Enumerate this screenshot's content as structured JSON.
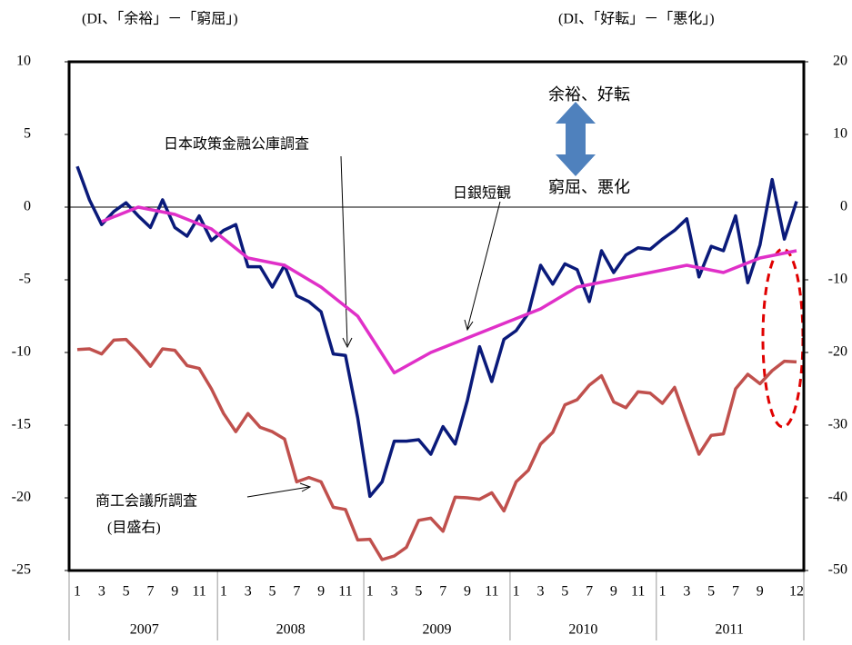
{
  "chart_data": {
    "type": "line",
    "y_axis_label": "(DI、「余裕」－「窮屈」)",
    "y2_axis_label": "(DI、「好転」－「悪化」)",
    "categories": [
      1,
      null,
      3,
      null,
      5,
      null,
      7,
      null,
      9,
      null,
      11,
      null,
      1,
      null,
      3,
      null,
      5,
      null,
      7,
      null,
      9,
      null,
      11,
      null,
      1,
      null,
      3,
      null,
      5,
      null,
      7,
      null,
      9,
      null,
      11,
      null,
      1,
      null,
      3,
      null,
      5,
      null,
      7,
      null,
      9,
      null,
      11,
      null,
      1,
      null,
      3,
      null,
      5,
      null,
      7,
      null,
      9,
      null,
      null,
      12
    ],
    "years": [
      "2007",
      "2008",
      "2009",
      "2010",
      "2011"
    ],
    "ylim": [
      -25,
      10
    ],
    "yticks": [
      10,
      5,
      0,
      -5,
      -10,
      -15,
      -20,
      -25
    ],
    "y2lim": [
      -50,
      20
    ],
    "y2ticks": [
      20,
      10,
      0,
      -10,
      -20,
      -30,
      -40,
      -50
    ],
    "series": [
      {
        "name": "日本政策金融公庫調査",
        "color": "#0a1a7a",
        "values": [
          2.8,
          0.5,
          -1.2,
          -0.3,
          0.3,
          -0.6,
          -1.4,
          0.5,
          -1.4,
          -2.0,
          -0.6,
          -2.3,
          -1.6,
          -1.2,
          -4.1,
          -4.1,
          -5.5,
          -4.0,
          -6.1,
          -6.5,
          -7.2,
          -10.1,
          -10.2,
          -14.5,
          -19.9,
          -18.9,
          -16.1,
          -16.1,
          -16.0,
          -17.0,
          -15.1,
          -16.3,
          -13.3,
          -9.6,
          -12.0,
          -9.1,
          -8.5,
          -7.3,
          -4.0,
          -5.3,
          -3.9,
          -4.3,
          -6.5,
          -3.0,
          -4.5,
          -3.3,
          -2.8,
          -2.9,
          -2.2,
          -1.6,
          -0.8,
          -4.8,
          -2.7,
          -3.0,
          -0.6,
          -5.2,
          -2.6,
          1.9,
          -2.2,
          0.4
        ]
      },
      {
        "name": "日銀短観",
        "color": "#e030c8",
        "values": [
          null,
          null,
          -1.0,
          null,
          null,
          0,
          null,
          null,
          -0.5,
          null,
          null,
          -1.5,
          null,
          null,
          -3.5,
          null,
          null,
          -4.0,
          null,
          null,
          -5.5,
          null,
          null,
          -7.5,
          null,
          null,
          -11.4,
          null,
          null,
          -10.0,
          null,
          null,
          -9.0,
          null,
          null,
          -8.0,
          null,
          null,
          -7.0,
          null,
          null,
          -5.5,
          null,
          null,
          -5.0,
          null,
          null,
          -4.5,
          null,
          null,
          -4.0,
          null,
          null,
          -4.5,
          null,
          null,
          -3.5,
          null,
          null,
          -3.0
        ]
      },
      {
        "name": "商工会議所調査",
        "color": "#c0504d",
        "axis": "y2",
        "values": [
          -19.6,
          -19.5,
          -20.2,
          -18.3,
          -18.2,
          -19.9,
          -21.9,
          -19.5,
          -19.7,
          -21.8,
          -22.2,
          -25.0,
          -28.4,
          -30.9,
          -28.4,
          -30.3,
          -30.9,
          -31.9,
          -37.8,
          -37.2,
          -37.8,
          -41.3,
          -41.6,
          -45.8,
          -45.7,
          -48.5,
          -48.0,
          -46.8,
          -43.1,
          -42.8,
          -44.6,
          -39.9,
          -40.0,
          -40.2,
          -39.3,
          -41.8,
          -37.8,
          -36.2,
          -32.6,
          -31.0,
          -27.2,
          -26.5,
          -24.5,
          -23.2,
          -26.8,
          -27.6,
          -25.4,
          -25.6,
          -27.0,
          -24.8,
          -29.5,
          -34.0,
          -31.4,
          -31.2,
          -25.0,
          -23.0,
          -24.3,
          -22.5,
          -21.2,
          -21.3
        ]
      }
    ],
    "annotations": [
      "(目盛右)",
      "余裕、好転",
      "窮屈、悪化"
    ]
  }
}
